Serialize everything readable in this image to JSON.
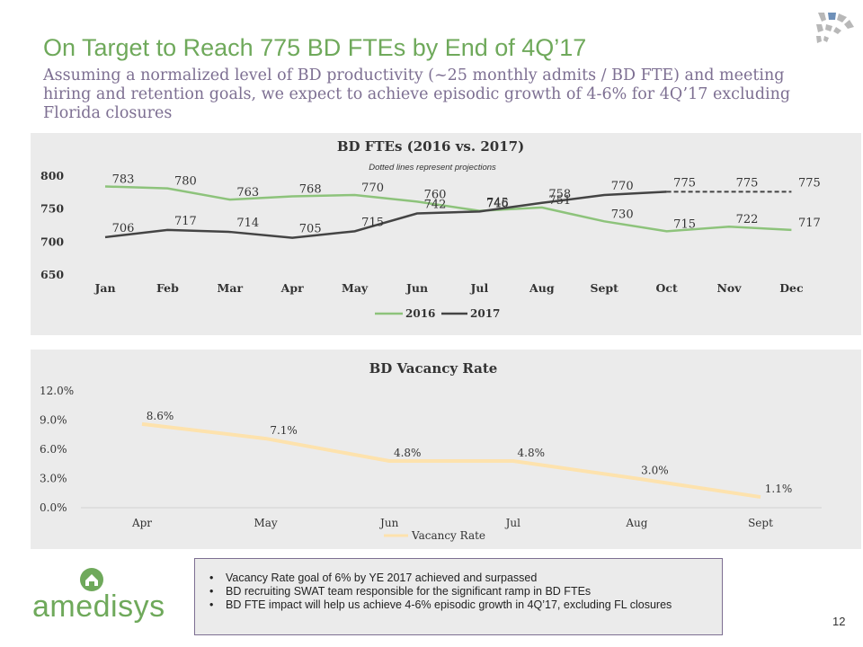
{
  "header": {
    "title": "On Target to Reach 775 BD FTEs by End of 4Q’17",
    "subtitle": "Assuming a normalized level of BD productivity (~25 monthly admits / BD FTE) and meeting hiring and retention goals, we expect to achieve episodic growth of 4-6% for 4Q’17 excluding Florida closures"
  },
  "chart_data": [
    {
      "type": "line",
      "title": "BD FTEs (2016 vs. 2017)",
      "subtitle": "Dotted lines represent projections",
      "categories": [
        "Jan",
        "Feb",
        "Mar",
        "Apr",
        "May",
        "Jun",
        "Jul",
        "Aug",
        "Sept",
        "Oct",
        "Nov",
        "Dec"
      ],
      "ylim": [
        650,
        800
      ],
      "yticks": [
        650,
        700,
        750,
        800
      ],
      "series": [
        {
          "name": "2016",
          "color": "#8dc37b",
          "values": [
            783,
            780,
            763,
            768,
            770,
            760,
            746,
            751,
            730,
            715,
            722,
            717
          ]
        },
        {
          "name": "2017",
          "color": "#444444",
          "values": [
            706,
            717,
            714,
            705,
            715,
            742,
            745,
            758,
            770,
            775,
            775,
            775
          ],
          "projected_from_index": 9
        }
      ],
      "legend": "bottom"
    },
    {
      "type": "line",
      "title": "BD Vacancy Rate",
      "categories": [
        "Apr",
        "May",
        "Jun",
        "Jul",
        "Aug",
        "Sept"
      ],
      "ylim": [
        0,
        12
      ],
      "yticks": [
        "0.0%",
        "3.0%",
        "6.0%",
        "9.0%",
        "12.0%"
      ],
      "series": [
        {
          "name": "Vacancy Rate",
          "color": "#fde2ad",
          "values": [
            8.6,
            7.1,
            4.8,
            4.8,
            3.0,
            1.1
          ],
          "labels": [
            "8.6%",
            "7.1%",
            "4.8%",
            "4.8%",
            "3.0%",
            "1.1%"
          ]
        }
      ],
      "legend": "bottom"
    }
  ],
  "callout": {
    "bullets": [
      "Vacancy Rate goal of 6% by YE 2017 achieved and surpassed",
      "BD recruiting SWAT team responsible for the significant ramp in BD FTEs",
      "BD FTE impact will help us achieve 4-6% episodic growth in 4Q’17, excluding FL closures"
    ]
  },
  "brand": {
    "name": "amedisys",
    "color": "#6fa95b",
    "accent": "#7d6f92"
  },
  "page_number": "12"
}
